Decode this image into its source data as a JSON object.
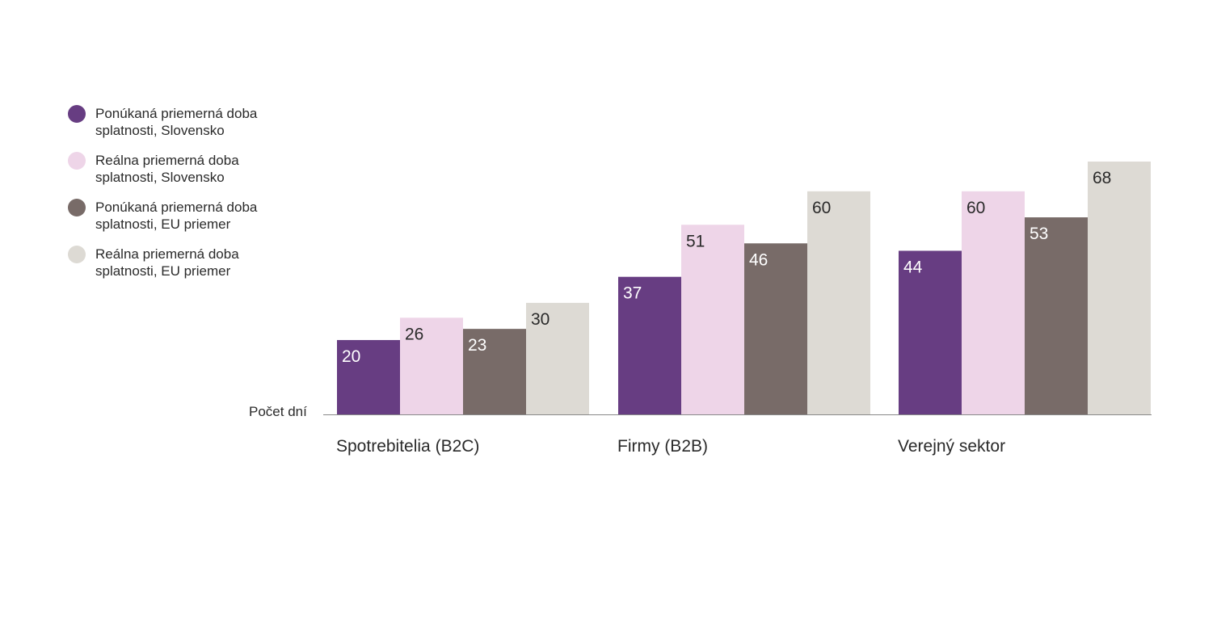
{
  "chart_data": {
    "type": "bar",
    "categories": [
      "Spotrebitelia (B2C)",
      "Firmy (B2B)",
      "Verejný sektor"
    ],
    "series": [
      {
        "name": "Ponúkaná priemerná doba splatnosti, Slovensko",
        "values": [
          20,
          37,
          44
        ],
        "color": "#673d82"
      },
      {
        "name": "Reálna priemerná doba splatnosti, Slovensko",
        "values": [
          26,
          51,
          60
        ],
        "color": "#eed5e8"
      },
      {
        "name": "Ponúkaná priemerná doba splatnosti, EU priemer",
        "values": [
          23,
          46,
          53
        ],
        "color": "#786b68"
      },
      {
        "name": "Reálna priemerná doba splatnosti, EU priemer",
        "values": [
          30,
          60,
          68
        ],
        "color": "#dddad4"
      }
    ],
    "ylabel": "Počet dní",
    "ylim": [
      0,
      68
    ],
    "grid": false,
    "legend_position": "left",
    "label_colors": {
      "dark_bar": "#ffffff",
      "light_bar": "#2a2a2a"
    }
  }
}
